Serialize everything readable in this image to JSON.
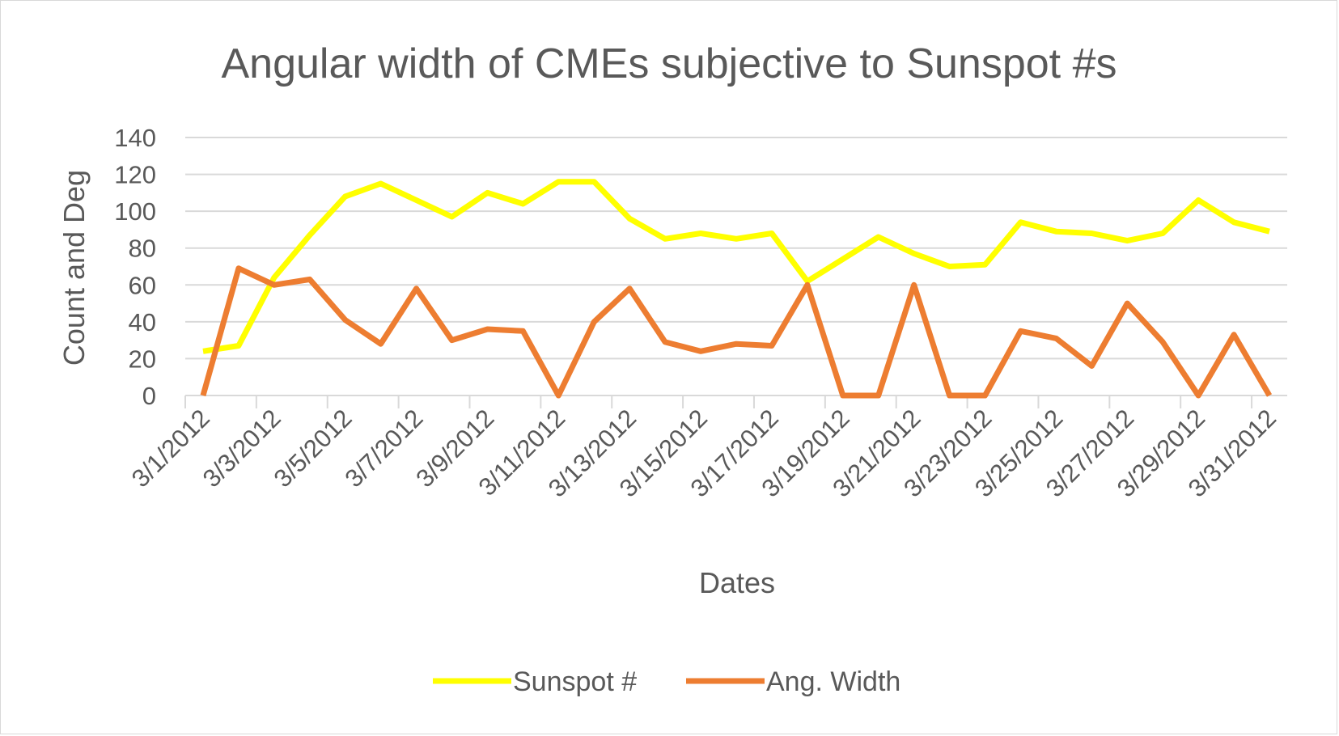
{
  "chart_data": {
    "type": "line",
    "title": "Angular width of CMEs subjective to Sunspot #s",
    "xlabel": "Dates",
    "ylabel": "Count and Deg",
    "ylim": [
      0,
      140
    ],
    "yticks": [
      "0",
      "20",
      "40",
      "60",
      "80",
      "100",
      "120",
      "140"
    ],
    "grid": true,
    "legend_position": "bottom",
    "x": [
      "3/1/2012",
      "3/2/2012",
      "3/3/2012",
      "3/4/2012",
      "3/5/2012",
      "3/6/2012",
      "3/7/2012",
      "3/8/2012",
      "3/9/2012",
      "3/10/2012",
      "3/11/2012",
      "3/12/2012",
      "3/13/2012",
      "3/14/2012",
      "3/15/2012",
      "3/16/2012",
      "3/17/2012",
      "3/18/2012",
      "3/19/2012",
      "3/20/2012",
      "3/21/2012",
      "3/22/2012",
      "3/23/2012",
      "3/24/2012",
      "3/25/2012",
      "3/26/2012",
      "3/27/2012",
      "3/28/2012",
      "3/29/2012",
      "3/30/2012",
      "3/31/2012"
    ],
    "xtick_labels": [
      "3/1/2012",
      "3/3/2012",
      "3/5/2012",
      "3/7/2012",
      "3/9/2012",
      "3/11/2012",
      "3/13/2012",
      "3/15/2012",
      "3/17/2012",
      "3/19/2012",
      "3/21/2012",
      "3/23/2012",
      "3/25/2012",
      "3/27/2012",
      "3/29/2012",
      "3/31/2012"
    ],
    "series": [
      {
        "name": "Sunspot #",
        "color": "#ffff00",
        "values": [
          24,
          27,
          64,
          87,
          108,
          115,
          106,
          97,
          110,
          104,
          116,
          116,
          96,
          85,
          88,
          85,
          88,
          62,
          74,
          86,
          77,
          70,
          71,
          94,
          89,
          88,
          84,
          88,
          106,
          94,
          89
        ]
      },
      {
        "name": "Ang. Width",
        "color": "#ed7d31",
        "values": [
          0,
          69,
          60,
          63,
          41,
          28,
          58,
          30,
          36,
          35,
          0,
          40,
          58,
          29,
          24,
          28,
          27,
          60,
          0,
          0,
          60,
          0,
          0,
          35,
          31,
          16,
          50,
          29,
          0,
          33,
          0
        ]
      }
    ]
  },
  "colors": {
    "text": "#595959",
    "gridline": "#d9d9d9",
    "border": "#d9d9d9"
  }
}
